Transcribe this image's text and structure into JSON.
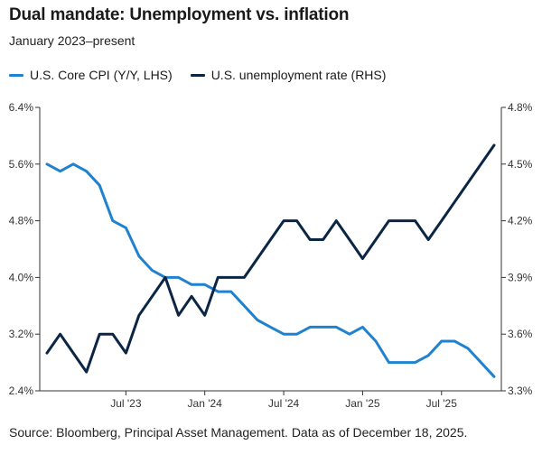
{
  "header": {
    "title": "Dual mandate: Unemployment vs. inflation",
    "subtitle": "January 2023–present"
  },
  "footer": {
    "source": "Source: Bloomberg, Principal Asset Management. Data as of December 18, 2025."
  },
  "colors": {
    "cpi": "#1f82d0",
    "unemployment": "#0b2545",
    "axis": "#333333"
  },
  "chart_data": {
    "type": "line",
    "x_start": "Jan 2023",
    "x_end": "Dec 2025",
    "x_tick_labels": [
      "Jul '23",
      "Jan '24",
      "Jul '24",
      "Jan '25",
      "Jul '25"
    ],
    "y_left": {
      "range": [
        2.4,
        6.4
      ],
      "ticks": [
        2.4,
        3.2,
        4.0,
        4.8,
        5.6,
        6.4
      ],
      "tick_labels": [
        "2.4%",
        "3.2%",
        "4.0%",
        "4.8%",
        "5.6%",
        "6.4%"
      ]
    },
    "y_right": {
      "range": [
        3.3,
        4.8
      ],
      "ticks": [
        3.3,
        3.6,
        3.9,
        4.2,
        4.5,
        4.8
      ],
      "tick_labels": [
        "3.3%",
        "3.6%",
        "3.9%",
        "4.2%",
        "4.5%",
        "4.8%"
      ]
    },
    "months": [
      "Jan 2023",
      "Feb 2023",
      "Mar 2023",
      "Apr 2023",
      "May 2023",
      "Jun 2023",
      "Jul 2023",
      "Aug 2023",
      "Sep 2023",
      "Oct 2023",
      "Nov 2023",
      "Dec 2023",
      "Jan 2024",
      "Feb 2024",
      "Mar 2024",
      "Apr 2024",
      "May 2024",
      "Jun 2024",
      "Jul 2024",
      "Aug 2024",
      "Sep 2024",
      "Oct 2024",
      "Nov 2024",
      "Dec 2024",
      "Jan 2025",
      "Feb 2025",
      "Mar 2025",
      "Apr 2025",
      "May 2025",
      "Jun 2025",
      "Jul 2025",
      "Aug 2025",
      "Sep 2025",
      "Oct 2025",
      "Nov 2025"
    ],
    "series": [
      {
        "name": "U.S. Core CPI (Y/Y, LHS)",
        "axis": "left",
        "values": [
          5.6,
          5.5,
          5.6,
          5.5,
          5.3,
          4.8,
          4.7,
          4.3,
          4.1,
          4.0,
          4.0,
          3.9,
          3.9,
          3.8,
          3.8,
          3.6,
          3.4,
          3.3,
          3.2,
          3.2,
          3.3,
          3.3,
          3.3,
          3.2,
          3.3,
          3.1,
          2.8,
          2.8,
          2.8,
          2.9,
          3.1,
          3.1,
          3.0,
          null,
          2.6
        ]
      },
      {
        "name": "U.S. unemployment rate (RHS)",
        "axis": "right",
        "values": [
          3.5,
          3.6,
          3.5,
          3.4,
          3.6,
          3.6,
          3.5,
          3.7,
          3.8,
          3.9,
          3.7,
          3.8,
          3.7,
          3.9,
          3.9,
          3.9,
          4.0,
          4.1,
          4.2,
          4.2,
          4.1,
          4.1,
          4.2,
          4.1,
          4.0,
          4.1,
          4.2,
          4.2,
          4.2,
          4.1,
          4.2,
          4.3,
          4.4,
          null,
          4.6
        ]
      }
    ]
  }
}
